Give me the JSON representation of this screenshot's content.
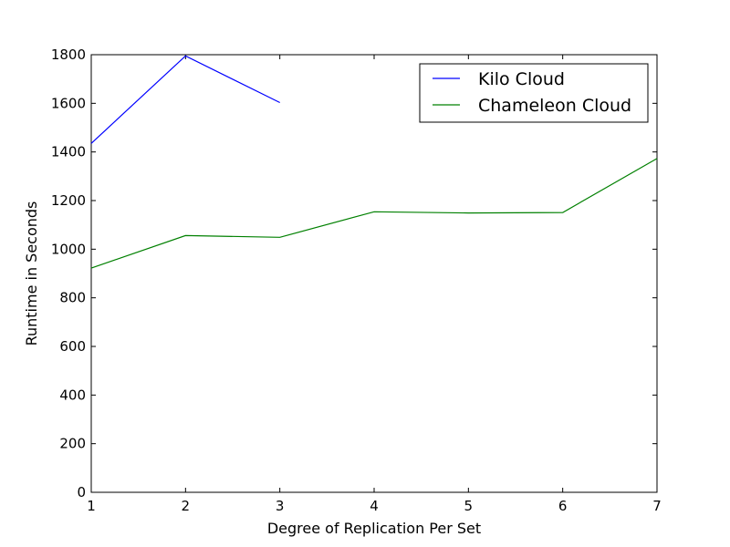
{
  "chart_data": {
    "type": "line",
    "title": "",
    "xlabel": "Degree of Replication Per Set",
    "ylabel": "Runtime in Seconds",
    "xlim": [
      1,
      7
    ],
    "ylim": [
      0,
      1800
    ],
    "xticks": [
      "1",
      "2",
      "3",
      "4",
      "5",
      "6",
      "7"
    ],
    "yticks": [
      "0",
      "200",
      "400",
      "600",
      "800",
      "1000",
      "1200",
      "1400",
      "1600",
      "1800"
    ],
    "grid": false,
    "legend_position": "top-right",
    "series": [
      {
        "name": "Kilo Cloud",
        "color": "#0000ff",
        "x": [
          1,
          2,
          3
        ],
        "y": [
          1435,
          1795,
          1603
        ]
      },
      {
        "name": "Chameleon Cloud",
        "color": "#008000",
        "x": [
          1,
          2,
          3,
          4,
          5,
          6,
          7
        ],
        "y": [
          922,
          1056,
          1049,
          1154,
          1149,
          1151,
          1373
        ]
      }
    ]
  }
}
